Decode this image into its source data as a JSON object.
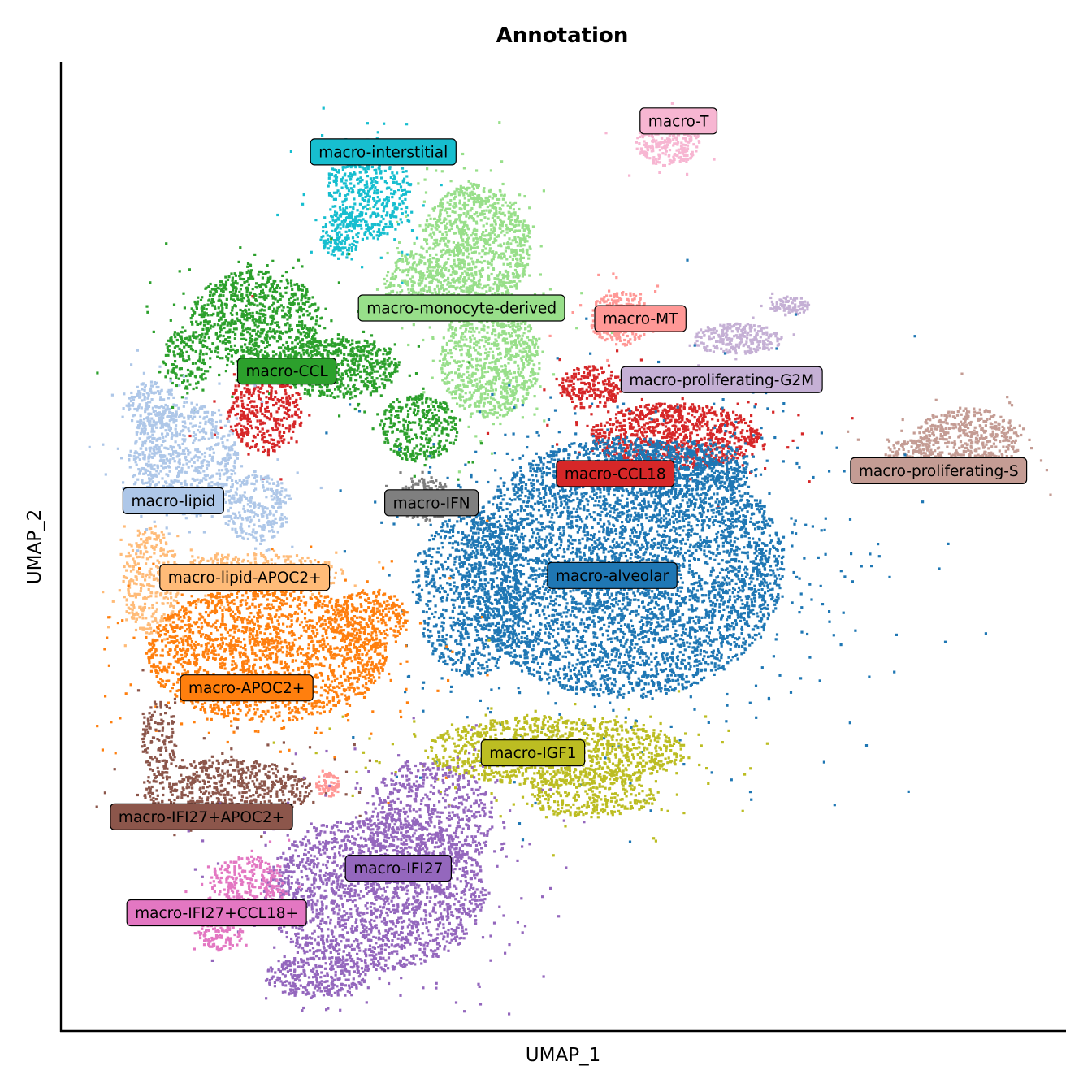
{
  "chart_data": {
    "type": "scatter",
    "title": "Annotation",
    "xlabel": "UMAP_1",
    "ylabel": "UMAP_2",
    "xlim": [
      0,
      100
    ],
    "ylim": [
      0,
      100
    ],
    "grid": false,
    "legend": "on-data",
    "clusters": [
      {
        "name": "macro-interstitial",
        "color": "#17becf",
        "label_xy": [
          32.1,
          90.7
        ],
        "blobs": [
          {
            "cx": 30.7,
            "cy": 86.8,
            "rx": 4.2,
            "ry": 5.2,
            "n": 550
          },
          {
            "cx": 27.8,
            "cy": 82.2,
            "rx": 2.0,
            "ry": 2.6,
            "n": 150
          }
        ]
      },
      {
        "name": "macro-T",
        "color": "#f7b6d2",
        "label_xy": [
          61.5,
          93.9
        ],
        "blobs": [
          {
            "cx": 60.4,
            "cy": 91.8,
            "rx": 3.2,
            "ry": 2.6,
            "n": 320
          }
        ]
      },
      {
        "name": "macro-monocyte-derived",
        "color": "#98df8a",
        "label_xy": [
          39.9,
          74.6
        ],
        "blobs": [
          {
            "cx": 41.4,
            "cy": 80.9,
            "rx": 5.5,
            "ry": 6.5,
            "n": 1100
          },
          {
            "cx": 42.7,
            "cy": 69.2,
            "rx": 5.0,
            "ry": 6.0,
            "n": 900
          },
          {
            "cx": 35.2,
            "cy": 76.7,
            "rx": 3.0,
            "ry": 3.5,
            "n": 280
          }
        ]
      },
      {
        "name": "macro-MT",
        "color": "#ff9896",
        "label_xy": [
          57.7,
          73.5
        ],
        "blobs": [
          {
            "cx": 55.7,
            "cy": 73.5,
            "rx": 3.0,
            "ry": 2.8,
            "n": 320
          },
          {
            "cx": 26.6,
            "cy": 25.4,
            "rx": 1.2,
            "ry": 1.3,
            "n": 70
          }
        ]
      },
      {
        "name": "macro-proliferating-G2M",
        "color": "#c5b0d5",
        "label_xy": [
          65.8,
          67.2
        ],
        "blobs": [
          {
            "cx": 67.3,
            "cy": 71.4,
            "rx": 4.5,
            "ry": 1.6,
            "n": 260
          },
          {
            "cx": 72.6,
            "cy": 74.8,
            "rx": 2.0,
            "ry": 1.0,
            "n": 90
          }
        ]
      },
      {
        "name": "macro-CCL",
        "color": "#2ca02c",
        "label_xy": [
          22.5,
          68.1
        ],
        "blobs": [
          {
            "cx": 19.4,
            "cy": 73.5,
            "rx": 6.5,
            "ry": 5.0,
            "n": 900
          },
          {
            "cx": 27.7,
            "cy": 68.4,
            "rx": 6.0,
            "ry": 3.2,
            "n": 650
          },
          {
            "cx": 35.6,
            "cy": 62.2,
            "rx": 4.0,
            "ry": 3.5,
            "n": 350
          },
          {
            "cx": 12.5,
            "cy": 69.1,
            "rx": 2.4,
            "ry": 3.2,
            "n": 160
          }
        ]
      },
      {
        "name": "macro-CCL18",
        "color": "#d62728",
        "label_xy": [
          55.2,
          57.5
        ],
        "blobs": [
          {
            "cx": 61.2,
            "cy": 61.4,
            "rx": 8.5,
            "ry": 3.4,
            "n": 1000
          },
          {
            "cx": 52.8,
            "cy": 66.4,
            "rx": 3.2,
            "ry": 2.2,
            "n": 220
          },
          {
            "cx": 20.3,
            "cy": 63.9,
            "rx": 3.8,
            "ry": 4.2,
            "n": 380
          }
        ]
      },
      {
        "name": "macro-proliferating-S",
        "color": "#c49c94",
        "label_xy": [
          87.4,
          57.8
        ],
        "blobs": [
          {
            "cx": 90.2,
            "cy": 60.9,
            "rx": 5.5,
            "ry": 3.4,
            "n": 550
          },
          {
            "cx": 84.7,
            "cy": 59.3,
            "rx": 2.6,
            "ry": 1.8,
            "n": 120
          }
        ]
      },
      {
        "name": "macro-lipid",
        "color": "#aec7e8",
        "label_xy": [
          11.2,
          54.7
        ],
        "blobs": [
          {
            "cx": 12.2,
            "cy": 58.9,
            "rx": 5.5,
            "ry": 6.0,
            "n": 800
          },
          {
            "cx": 19.5,
            "cy": 54.0,
            "rx": 3.5,
            "ry": 3.5,
            "n": 280
          },
          {
            "cx": 9.1,
            "cy": 64.4,
            "rx": 2.6,
            "ry": 2.6,
            "n": 180
          }
        ]
      },
      {
        "name": "macro-IFN",
        "color": "#7f7f7f",
        "label_xy": [
          36.9,
          54.5
        ],
        "blobs": [
          {
            "cx": 36.3,
            "cy": 54.8,
            "rx": 2.8,
            "ry": 2.2,
            "n": 200
          }
        ]
      },
      {
        "name": "macro-alveolar",
        "color": "#1f77b4",
        "label_xy": [
          54.9,
          47.0
        ],
        "blobs": [
          {
            "cx": 56.0,
            "cy": 47.8,
            "rx": 16.0,
            "ry": 13.5,
            "n": 5400
          },
          {
            "cx": 40.8,
            "cy": 45.1,
            "rx": 5.5,
            "ry": 8.5,
            "n": 800
          },
          {
            "cx": 61.9,
            "cy": 58.1,
            "rx": 7.5,
            "ry": 2.8,
            "n": 450
          }
        ]
      },
      {
        "name": "macro-lipid-APOC2+",
        "color": "#ffbb78",
        "label_xy": [
          18.3,
          46.8
        ],
        "blobs": [
          {
            "cx": 9.0,
            "cy": 46.4,
            "rx": 2.8,
            "ry": 5.5,
            "n": 330
          },
          {
            "cx": 19.8,
            "cy": 47.3,
            "rx": 8.5,
            "ry": 2.0,
            "n": 360
          }
        ]
      },
      {
        "name": "macro-APOC2+",
        "color": "#ff7f0e",
        "label_xy": [
          18.5,
          35.4
        ],
        "blobs": [
          {
            "cx": 20.5,
            "cy": 38.9,
            "rx": 12.0,
            "ry": 7.0,
            "n": 2100
          },
          {
            "cx": 30.6,
            "cy": 42.6,
            "rx": 4.0,
            "ry": 3.0,
            "n": 250
          }
        ]
      },
      {
        "name": "macro-IGF1",
        "color": "#bcbd22",
        "label_xy": [
          47.0,
          28.7
        ],
        "blobs": [
          {
            "cx": 49.3,
            "cy": 28.9,
            "rx": 13.0,
            "ry": 3.6,
            "n": 1150
          },
          {
            "cx": 52.6,
            "cy": 24.6,
            "rx": 7.0,
            "ry": 2.6,
            "n": 350
          }
        ]
      },
      {
        "name": "macro-IFI27+APOC2+",
        "color": "#8c564b",
        "label_xy": [
          14.0,
          22.1
        ],
        "blobs": [
          {
            "cx": 16.5,
            "cy": 25.0,
            "rx": 8.5,
            "ry": 3.0,
            "n": 650
          },
          {
            "cx": 9.8,
            "cy": 30.2,
            "rx": 1.8,
            "ry": 4.0,
            "n": 130
          }
        ]
      },
      {
        "name": "macro-IFI27",
        "color": "#9467bd",
        "label_xy": [
          33.6,
          16.8
        ],
        "blobs": [
          {
            "cx": 31.3,
            "cy": 14.2,
            "rx": 11.0,
            "ry": 8.0,
            "n": 2100
          },
          {
            "cx": 36.7,
            "cy": 21.8,
            "rx": 6.5,
            "ry": 6.0,
            "n": 700
          },
          {
            "cx": 25.4,
            "cy": 5.6,
            "rx": 5.0,
            "ry": 2.2,
            "n": 300
          }
        ]
      },
      {
        "name": "macro-IFI27+CCL18+",
        "color": "#e377c2",
        "label_xy": [
          15.5,
          12.2
        ],
        "blobs": [
          {
            "cx": 18.4,
            "cy": 14.6,
            "rx": 3.8,
            "ry": 3.6,
            "n": 360
          },
          {
            "cx": 15.9,
            "cy": 10.2,
            "rx": 2.2,
            "ry": 2.0,
            "n": 140
          }
        ]
      }
    ]
  }
}
